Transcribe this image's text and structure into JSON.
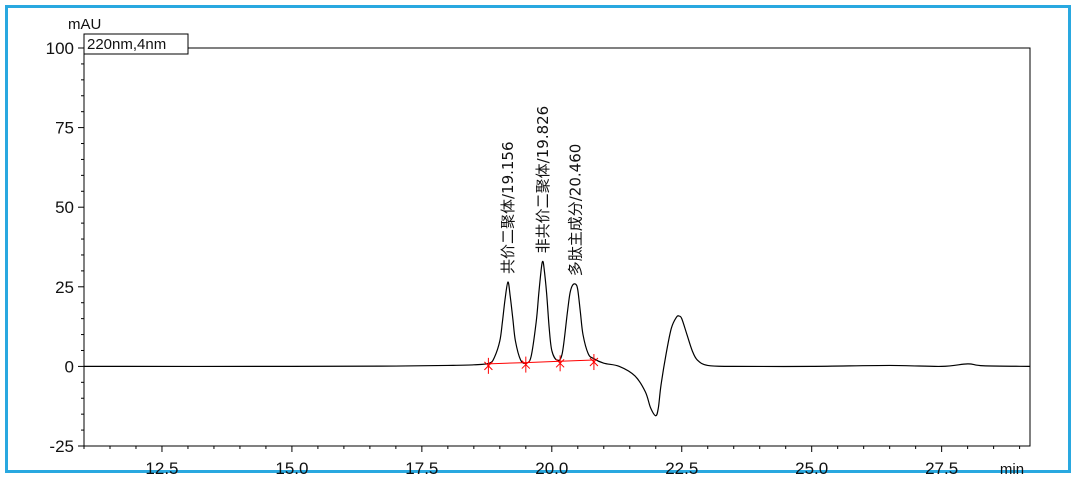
{
  "chart_data": {
    "type": "line",
    "ylabel": "mAU",
    "xlabel": "min",
    "legend": "220nm,4nm",
    "xlim": [
      11.0,
      29.2
    ],
    "ylim": [
      -25,
      100
    ],
    "x_ticks": [
      12.5,
      15.0,
      17.5,
      20.0,
      22.5,
      25.0,
      27.5
    ],
    "x_tick_labels": [
      "12.5",
      "15.0",
      "17.5",
      "20.0",
      "22.5",
      "25.0",
      "27.5"
    ],
    "y_ticks": [
      -25,
      0,
      25,
      50,
      75,
      100
    ],
    "y_tick_labels": [
      "-25",
      "0",
      "25",
      "50",
      "75",
      "100"
    ],
    "series": [
      {
        "color": "#000000",
        "x": [
          11.0,
          15.0,
          17.0,
          18.0,
          18.5,
          18.8,
          18.9,
          19.0,
          19.05,
          19.1,
          19.156,
          19.2,
          19.25,
          19.3,
          19.4,
          19.5,
          19.6,
          19.7,
          19.75,
          19.8,
          19.826,
          19.85,
          19.9,
          19.95,
          20.0,
          20.1,
          20.2,
          20.3,
          20.35,
          20.4,
          20.46,
          20.5,
          20.55,
          20.6,
          20.7,
          20.8,
          21.0,
          21.3,
          21.6,
          21.8,
          21.9,
          22.0,
          22.05,
          22.1,
          22.2,
          22.3,
          22.4,
          22.45,
          22.5,
          22.6,
          22.7,
          22.8,
          23.0,
          23.5,
          25.0,
          26.5,
          27.5,
          28.0,
          28.3,
          29.2
        ],
        "y": [
          0.0,
          0.0,
          0.1,
          0.3,
          0.5,
          1.0,
          3.0,
          8.0,
          14.0,
          21.0,
          26.5,
          22.0,
          15.0,
          8.0,
          2.0,
          1.0,
          3.0,
          14.0,
          23.0,
          31.0,
          33.0,
          31.0,
          23.0,
          12.0,
          5.0,
          2.0,
          4.0,
          17.0,
          23.0,
          25.5,
          25.8,
          24.0,
          17.0,
          10.0,
          4.0,
          2.5,
          1.0,
          0.0,
          -3.0,
          -8.0,
          -13.0,
          -15.5,
          -13.0,
          -6.0,
          4.0,
          12.0,
          15.5,
          15.8,
          15.0,
          10.0,
          5.0,
          2.0,
          0.3,
          0.0,
          0.0,
          0.3,
          0.0,
          0.8,
          0.2,
          0.0
        ]
      }
    ],
    "baseline": {
      "color": "#ff0000",
      "x": [
        18.78,
        19.5,
        20.16,
        20.81
      ],
      "y": [
        0.8,
        1.2,
        1.6,
        2.0
      ]
    },
    "peak_labels": [
      {
        "text": "共价二聚体/19.156",
        "x": 19.156,
        "y": 26.5
      },
      {
        "text": "非共价二聚体/19.826",
        "x": 19.826,
        "y": 33.0
      },
      {
        "text": "多肽主成分/20.460",
        "x": 20.46,
        "y": 25.8
      }
    ]
  }
}
